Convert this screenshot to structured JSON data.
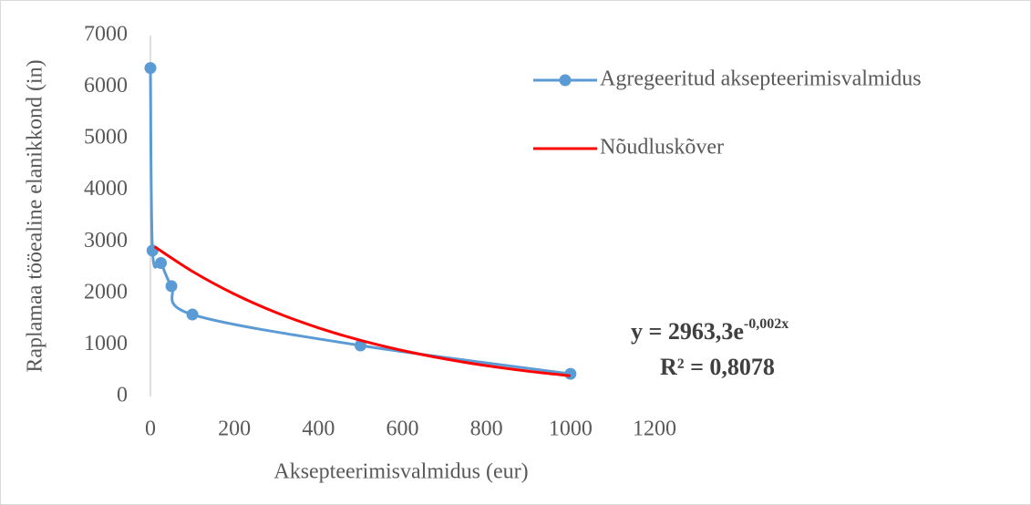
{
  "chart_data": {
    "type": "line",
    "x_label": "Aksepteerimisvalmidus (eur)",
    "y_label": "Raplamaa tööealine elanikkond (in)",
    "xlim": [
      0,
      1200
    ],
    "xticks": [
      0,
      200,
      400,
      600,
      800,
      1000,
      1200
    ],
    "ylim": [
      0,
      7000
    ],
    "yticks": [
      0,
      1000,
      2000,
      3000,
      4000,
      5000,
      6000,
      7000
    ],
    "grid": false,
    "legend": "right",
    "series": [
      {
        "name": "Agregeeritud aksepteerimisvalmidus",
        "color": "#5b9bd5",
        "markers": true,
        "x": [
          0,
          5,
          25,
          50,
          100,
          500,
          1000
        ],
        "values": [
          6370,
          2830,
          2590,
          2140,
          1590,
          990,
          440
        ]
      },
      {
        "name": "Nõudluskõver",
        "color": "#ff0000",
        "markers": false,
        "x": [
          10,
          100,
          200,
          300,
          400,
          500,
          600,
          700,
          800,
          900,
          1000
        ],
        "values": [
          2905,
          2426,
          1986,
          1626,
          1332,
          1090,
          893,
          731,
          598,
          490,
          401
        ]
      }
    ],
    "equation": {
      "base": "y = 2963,3e",
      "exponent": "-0,002x"
    },
    "r_squared": "R² = 0,8078"
  }
}
